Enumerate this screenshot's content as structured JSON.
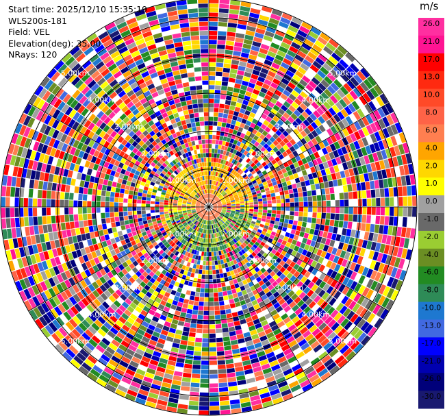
{
  "header": {
    "start_time": "Start time: 2025/12/10 15:35:19",
    "station": "WLS200s-181",
    "field": "Field: VEL",
    "elevation": "Elevation(deg): 35.00",
    "nrays": "NRays: 120"
  },
  "colorbar": {
    "unit": "m/s",
    "ticks": [
      "26.0",
      "21.0",
      "17.0",
      "13.0",
      "10.0",
      "8.0",
      "6.0",
      "4.0",
      "2.0",
      "1.0",
      "0.0",
      "-1.0",
      "-2.0",
      "-4.0",
      "-6.0",
      "-8.0",
      "-10.0",
      "-13.0",
      "-17.0",
      "-21.0",
      "-26.0",
      "-30.0"
    ],
    "colors": [
      "#ff2fa0",
      "#ff1493",
      "#ff0000",
      "#ff2a10",
      "#ff4a28",
      "#ff6347",
      "#ff7f50",
      "#ffa500",
      "#ffd700",
      "#ffff00",
      "#a0a0a0",
      "#696969",
      "#9acd32",
      "#6b8e23",
      "#228b22",
      "#2e8b57",
      "#1e78d0",
      "#4169e1",
      "#0000ff",
      "#0000b0",
      "#00007a",
      "#191970"
    ]
  },
  "chart_data": {
    "type": "heatmap",
    "projection": "polar (PPI)",
    "field": "VEL",
    "units": "m/s",
    "n_rays": 120,
    "range_rings_km": [
      1,
      2,
      3,
      4,
      5
    ],
    "ring_labels": [
      "1.00km",
      "2.00km",
      "3.00km",
      "4.00km",
      "5.00km"
    ],
    "value_range": [
      -30.0,
      26.0
    ]
  }
}
